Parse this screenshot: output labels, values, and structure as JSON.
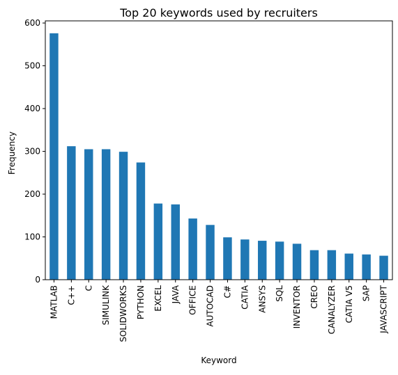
{
  "chart_data": {
    "type": "bar",
    "title": "Top 20 keywords used by recruiters",
    "xlabel": "Keyword",
    "ylabel": "Frequency",
    "categories": [
      "MATLAB",
      "C++",
      "C",
      "SIMULINK",
      "SOLIDWORKS",
      "PYTHON",
      "EXCEL",
      "JAVA",
      "OFFICE",
      "AUTOCAD",
      "C#",
      "CATIA",
      "ANSYS",
      "SQL",
      "INVENTOR",
      "CREO",
      "CANALYZER",
      "CATIA V5",
      "SAP",
      "JAVASCRIPT"
    ],
    "values": [
      576,
      312,
      305,
      305,
      299,
      274,
      178,
      176,
      143,
      128,
      99,
      94,
      91,
      89,
      84,
      69,
      69,
      61,
      59,
      56
    ],
    "ylim": [
      0,
      605
    ],
    "yticks": [
      0,
      100,
      200,
      300,
      400,
      500,
      600
    ],
    "bar_color": "#1f77b4",
    "grid": false,
    "legend": "none"
  }
}
